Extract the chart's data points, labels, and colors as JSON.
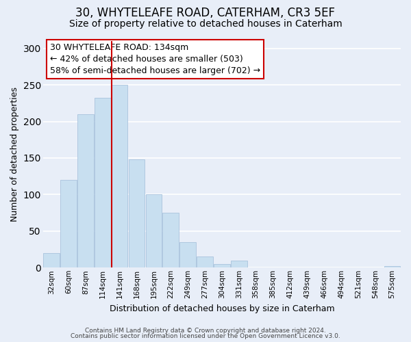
{
  "title": "30, WHYTELEAFE ROAD, CATERHAM, CR3 5EF",
  "subtitle": "Size of property relative to detached houses in Caterham",
  "xlabel": "Distribution of detached houses by size in Caterham",
  "ylabel": "Number of detached properties",
  "categories": [
    "32sqm",
    "60sqm",
    "87sqm",
    "114sqm",
    "141sqm",
    "168sqm",
    "195sqm",
    "222sqm",
    "249sqm",
    "277sqm",
    "304sqm",
    "331sqm",
    "358sqm",
    "385sqm",
    "412sqm",
    "439sqm",
    "466sqm",
    "494sqm",
    "521sqm",
    "548sqm",
    "575sqm"
  ],
  "values": [
    20,
    120,
    210,
    232,
    250,
    148,
    100,
    75,
    35,
    15,
    5,
    10,
    0,
    0,
    0,
    0,
    0,
    0,
    0,
    0,
    2
  ],
  "bar_color": "#c8dff0",
  "marker_line_index": 4,
  "marker_line_color": "#cc0000",
  "ylim": [
    0,
    310
  ],
  "yticks": [
    0,
    50,
    100,
    150,
    200,
    250,
    300
  ],
  "annotation_title": "30 WHYTELEAFE ROAD: 134sqm",
  "annotation_line1": "← 42% of detached houses are smaller (503)",
  "annotation_line2": "58% of semi-detached houses are larger (702) →",
  "footer_line1": "Contains HM Land Registry data © Crown copyright and database right 2024.",
  "footer_line2": "Contains public sector information licensed under the Open Government Licence v3.0.",
  "background_color": "#e8eef8",
  "plot_background": "#e8eef8",
  "grid_color": "#ffffff",
  "title_fontsize": 12,
  "subtitle_fontsize": 10,
  "ylabel_fontsize": 9,
  "xlabel_fontsize": 9,
  "tick_fontsize": 7.5,
  "annotation_fontsize": 9,
  "footer_fontsize": 6.5
}
